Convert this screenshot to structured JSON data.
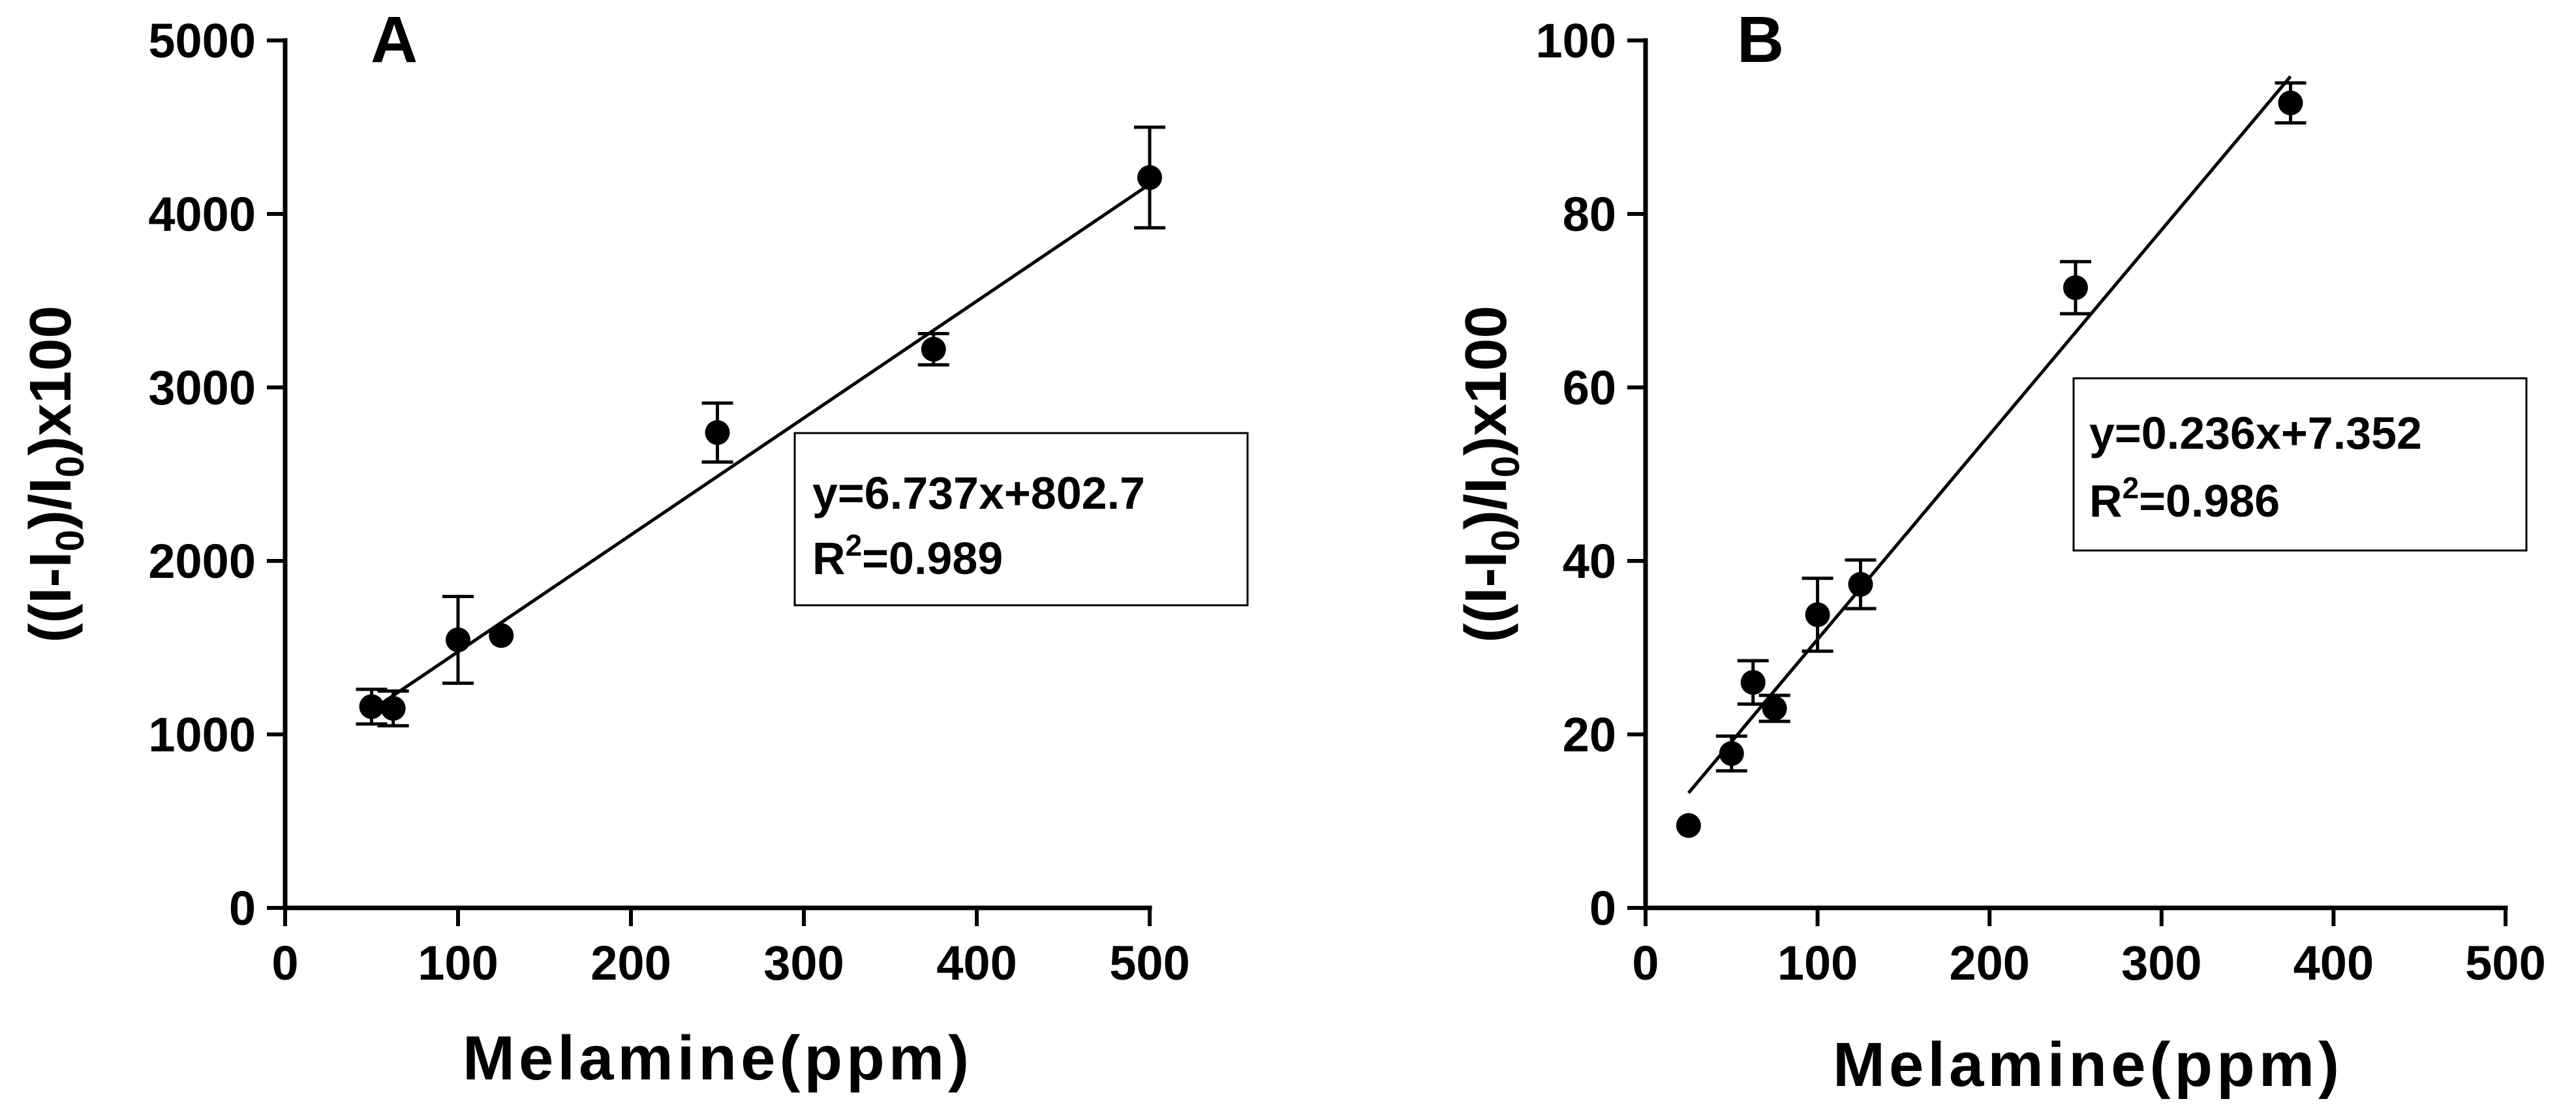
{
  "chart_data": [
    {
      "type": "scatter",
      "panel_label": "A",
      "xlabel": "Melamine(ppm)",
      "ylabel": "((I-I0)/I0)x100",
      "xlim": [
        0,
        500
      ],
      "ylim": [
        0,
        5000
      ],
      "xticks": [
        0,
        100,
        200,
        300,
        400,
        500
      ],
      "yticks": [
        0,
        1000,
        2000,
        3000,
        4000,
        5000
      ],
      "x": [
        50,
        62.5,
        100,
        125,
        250,
        375,
        500
      ],
      "y": [
        1160,
        1150,
        1545,
        1570,
        2740,
        3220,
        4210
      ],
      "error": [
        100,
        100,
        250,
        0,
        170,
        90,
        290
      ],
      "fit": {
        "slope": 6.737,
        "intercept": 802.7,
        "x_range": [
          50,
          500
        ]
      },
      "equation": "y=6.737x+802.7",
      "r2_prefix": "R",
      "r2_sup": "2",
      "r2_value": "=0.989"
    },
    {
      "type": "scatter",
      "panel_label": "B",
      "xlabel": "Melamine(ppm)",
      "ylabel": "((I-I0)/I0)x100",
      "xlim": [
        0,
        500
      ],
      "ylim": [
        0,
        100
      ],
      "xticks": [
        0,
        100,
        200,
        300,
        400,
        500
      ],
      "yticks": [
        0,
        20,
        40,
        60,
        80,
        100
      ],
      "x": [
        25,
        50,
        62.5,
        75,
        100,
        125,
        250,
        375
      ],
      "y": [
        9.5,
        17.8,
        26,
        23,
        33.8,
        37.3,
        71.5,
        92.8
      ],
      "error": [
        0,
        2,
        2.5,
        1.5,
        4.2,
        2.8,
        3,
        2.3
      ],
      "fit": {
        "slope": 0.236,
        "intercept": 7.352,
        "x_range": [
          25,
          375
        ]
      },
      "equation": "y=0.236x+7.352",
      "r2_prefix": "R",
      "r2_sup": "2",
      "r2_value": "=0.986"
    }
  ]
}
